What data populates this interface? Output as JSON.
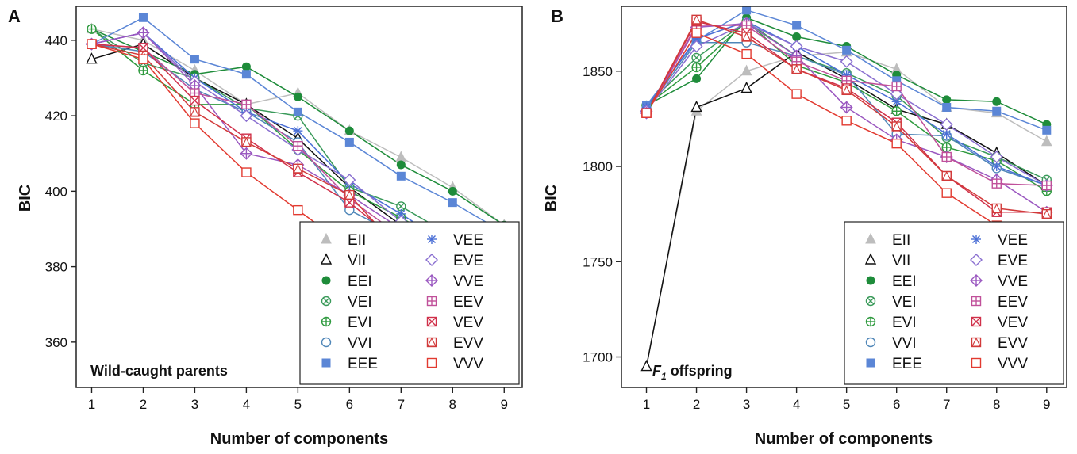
{
  "figure": {
    "panels": [
      {
        "letter": "A",
        "caption": "Wild-caught parents",
        "ylabel": "BIC",
        "xlabel": "Number of components"
      },
      {
        "letter": "B",
        "caption_main": "F",
        "caption_sub": "1",
        "caption_rest": " offspring",
        "ylabel": "BIC",
        "xlabel": "Number of components"
      }
    ]
  },
  "legend": {
    "models": [
      {
        "name": "EII",
        "color": "#bdbdbd",
        "marker": "filled-triangle"
      },
      {
        "name": "VII",
        "color": "#111111",
        "marker": "open-triangle"
      },
      {
        "name": "EEI",
        "color": "#1e8c3a",
        "marker": "filled-circle"
      },
      {
        "name": "VEI",
        "color": "#3a9a5a",
        "marker": "circle-x"
      },
      {
        "name": "EVI",
        "color": "#2e9a3e",
        "marker": "circle-plus"
      },
      {
        "name": "VVI",
        "color": "#4f86b8",
        "marker": "open-circle"
      },
      {
        "name": "EEE",
        "color": "#5b86d6",
        "marker": "filled-square"
      },
      {
        "name": "VEE",
        "color": "#4a6fd6",
        "marker": "asterisk"
      },
      {
        "name": "EVE",
        "color": "#8a6fd0",
        "marker": "open-diamond"
      },
      {
        "name": "VVE",
        "color": "#9a57c0",
        "marker": "diamond-plus"
      },
      {
        "name": "EEV",
        "color": "#c0509a",
        "marker": "square-plus"
      },
      {
        "name": "VEV",
        "color": "#d0304a",
        "marker": "square-x"
      },
      {
        "name": "EVV",
        "color": "#d23a3a",
        "marker": "square-triangle"
      },
      {
        "name": "VVV",
        "color": "#e23a30",
        "marker": "open-square"
      }
    ]
  },
  "chart_data": [
    {
      "type": "line",
      "title": "Wild-caught parents",
      "xlabel": "Number of components",
      "ylabel": "BIC",
      "x": [
        1,
        2,
        3,
        4,
        5,
        6,
        7,
        8,
        9
      ],
      "xlim": [
        0.7,
        9.35
      ],
      "ylim": [
        348,
        449
      ],
      "yticks": [
        360,
        380,
        400,
        420,
        440
      ],
      "legend_position": "bottom-right",
      "series": [
        {
          "name": "EII",
          "values": [
            443,
            440,
            432,
            423,
            426,
            416,
            409,
            401,
            391
          ]
        },
        {
          "name": "VII",
          "values": [
            435,
            439,
            430,
            423,
            414,
            401,
            391,
            383,
            373
          ]
        },
        {
          "name": "EEI",
          "values": [
            443,
            437,
            431,
            433,
            425,
            416,
            407,
            400,
            391
          ]
        },
        {
          "name": "VEI",
          "values": [
            443,
            434,
            430,
            422,
            420,
            401,
            396,
            388,
            380
          ]
        },
        {
          "name": "EVI",
          "values": [
            443,
            432,
            423,
            423,
            411,
            400,
            393,
            385,
            375
          ]
        },
        {
          "name": "VVI",
          "values": [
            439,
            437,
            427,
            421,
            413,
            395,
            388,
            380,
            372
          ]
        },
        {
          "name": "EEE",
          "values": [
            439,
            446,
            435,
            431,
            421,
            413,
            404,
            397,
            389
          ]
        },
        {
          "name": "VEE",
          "values": [
            439,
            442,
            430,
            421,
            416,
            402,
            394,
            385,
            376
          ]
        },
        {
          "name": "EVE",
          "values": [
            439,
            442,
            429,
            420,
            411,
            403,
            392,
            383,
            373
          ]
        },
        {
          "name": "VVE",
          "values": [
            439,
            442,
            428,
            410,
            407,
            399,
            390,
            380,
            370
          ]
        },
        {
          "name": "EEV",
          "values": [
            439,
            438,
            426,
            423,
            412,
            398,
            388,
            378,
            368
          ]
        },
        {
          "name": "VEV",
          "values": [
            439,
            438,
            424,
            414,
            405,
            397,
            386,
            376,
            366
          ]
        },
        {
          "name": "EVV",
          "values": [
            439,
            436,
            421,
            413,
            406,
            399,
            384,
            374,
            364
          ]
        },
        {
          "name": "VVV",
          "values": [
            439,
            435,
            418,
            405,
            395,
            385,
            376,
            366,
            356
          ]
        }
      ]
    },
    {
      "type": "line",
      "title": "F1 offspring",
      "xlabel": "Number of components",
      "ylabel": "BIC",
      "x": [
        1,
        2,
        3,
        4,
        5,
        6,
        7,
        8,
        9
      ],
      "xlim": [
        0.5,
        9.4
      ],
      "ylim": [
        1684,
        1884
      ],
      "yticks": [
        1700,
        1750,
        1800,
        1850
      ],
      "legend_position": "bottom-right",
      "series": [
        {
          "name": "EII",
          "values": [
            1695,
            1829,
            1850,
            1858,
            1860,
            1851,
            1831,
            1828,
            1813
          ]
        },
        {
          "name": "VII",
          "values": [
            1695,
            1831,
            1841,
            1860,
            1846,
            1830,
            1822,
            1807,
            1790
          ]
        },
        {
          "name": "EEI",
          "values": [
            1832,
            1846,
            1878,
            1868,
            1863,
            1848,
            1835,
            1834,
            1822
          ]
        },
        {
          "name": "VEI",
          "values": [
            1832,
            1857,
            1876,
            1858,
            1849,
            1837,
            1815,
            1805,
            1793
          ]
        },
        {
          "name": "EVI",
          "values": [
            1832,
            1852,
            1876,
            1853,
            1844,
            1829,
            1810,
            1803,
            1787
          ]
        },
        {
          "name": "VVI",
          "values": [
            1830,
            1865,
            1865,
            1858,
            1848,
            1817,
            1816,
            1799,
            1790
          ]
        },
        {
          "name": "EEE",
          "values": [
            1832,
            1866,
            1882,
            1874,
            1861,
            1845,
            1831,
            1829,
            1819
          ]
        },
        {
          "name": "VEE",
          "values": [
            1831,
            1867,
            1876,
            1863,
            1848,
            1834,
            1817,
            1800,
            1790
          ]
        },
        {
          "name": "EVE",
          "values": [
            1829,
            1863,
            1875,
            1863,
            1855,
            1838,
            1822,
            1805,
            1790
          ]
        },
        {
          "name": "VVE",
          "values": [
            1828,
            1873,
            1875,
            1858,
            1831,
            1814,
            1805,
            1793,
            1776
          ]
        },
        {
          "name": "EEV",
          "values": [
            1828,
            1874,
            1874,
            1855,
            1845,
            1842,
            1805,
            1791,
            1790
          ]
        },
        {
          "name": "VEV",
          "values": [
            1828,
            1876,
            1870,
            1851,
            1841,
            1823,
            1795,
            1776,
            1776
          ]
        },
        {
          "name": "EVV",
          "values": [
            1828,
            1877,
            1868,
            1851,
            1840,
            1821,
            1795,
            1778,
            1775
          ]
        },
        {
          "name": "VVV",
          "values": [
            1828,
            1870,
            1859,
            1838,
            1824,
            1812,
            1786,
            1769,
            1754
          ]
        }
      ]
    }
  ]
}
